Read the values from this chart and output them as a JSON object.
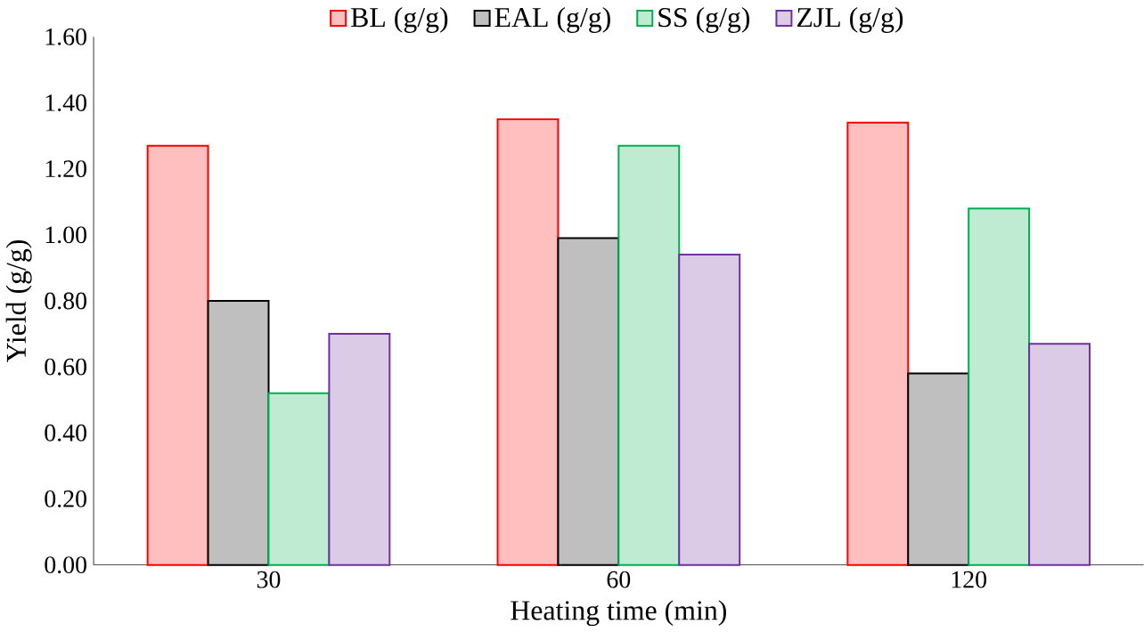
{
  "chart_data": {
    "type": "bar",
    "xlabel": "Heating time (min)",
    "ylabel": "Yield (g/g)",
    "categories": [
      "30",
      "60",
      "120"
    ],
    "series": [
      {
        "name": "BL (g/g)",
        "color": "#ff0000",
        "values": [
          1.27,
          1.35,
          1.34
        ]
      },
      {
        "name": "EAL (g/g)",
        "color": "#000000",
        "values": [
          0.8,
          0.99,
          0.58
        ]
      },
      {
        "name": "SS (g/g)",
        "color": "#00b050",
        "values": [
          0.52,
          1.27,
          1.08
        ]
      },
      {
        "name": "ZJL (g/g)",
        "color": "#7030a0",
        "values": [
          0.7,
          0.94,
          0.67
        ]
      }
    ],
    "ylim": [
      0,
      1.6
    ],
    "yticks": [
      {
        "value": 0,
        "label": "0.00"
      },
      {
        "value": 0.2,
        "label": "0.20"
      },
      {
        "value": 0.4,
        "label": "0.40"
      },
      {
        "value": 0.6,
        "label": "0.60"
      },
      {
        "value": 0.8,
        "label": "0.80"
      },
      {
        "value": 1.0,
        "label": "1.00"
      },
      {
        "value": 1.2,
        "label": "1.20"
      },
      {
        "value": 1.4,
        "label": "1.40"
      },
      {
        "value": 1.6,
        "label": "1.60"
      }
    ],
    "grid": false,
    "legend": "top"
  }
}
